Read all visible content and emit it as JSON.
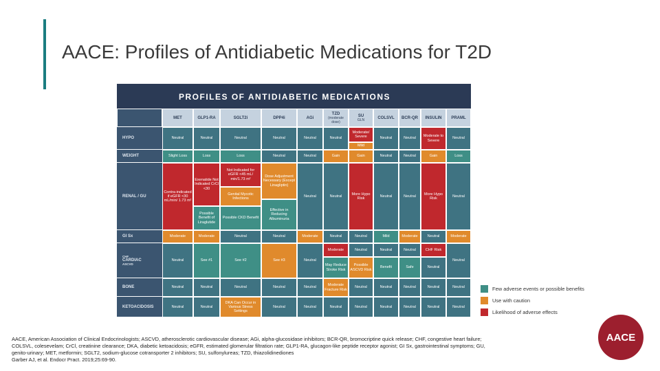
{
  "slide_title": "AACE: Profiles of Antidiabetic Medications for T2D",
  "table": {
    "title": "PROFILES OF ANTIDIABETIC MEDICATIONS",
    "columns": [
      {
        "label": "MET"
      },
      {
        "label": "GLP1-RA"
      },
      {
        "label": "SGLT2i"
      },
      {
        "label": "DPP4i"
      },
      {
        "label": "AGi"
      },
      {
        "label": "TZD",
        "note": "(moderate dose)"
      },
      {
        "label": "SU",
        "note": "GLN"
      },
      {
        "label": "COLSVL"
      },
      {
        "label": "BCR-QR"
      },
      {
        "label": "INSULIN"
      },
      {
        "label": "PRAML"
      }
    ],
    "rows": [
      {
        "label": "HYPO",
        "cells": [
          {
            "text": "Neutral",
            "color": "#3f7382"
          },
          {
            "text": "Neutral",
            "color": "#3f7382"
          },
          {
            "text": "Neutral",
            "color": "#3f7382"
          },
          {
            "text": "Neutral",
            "color": "#3f7382"
          },
          {
            "text": "Neutral",
            "color": "#3f7382"
          },
          {
            "text": "Neutral",
            "color": "#3f7382"
          },
          {
            "text": "Moderate/ Severe",
            "color": "#c0282d"
          },
          {
            "text": "Mild",
            "color": "#e08a2c"
          },
          {
            "text": "Neutral",
            "color": "#3f7382"
          },
          {
            "text": "Neutral",
            "color": "#3f7382"
          },
          {
            "text": "Moderate to Severe",
            "color": "#c0282d"
          },
          {
            "text": "Neutral",
            "color": "#3f7382"
          }
        ]
      },
      {
        "label": "WEIGHT",
        "cells": [
          {
            "text": "Slight Loss",
            "color": "#3f8f86"
          },
          {
            "text": "Loss",
            "color": "#3f8f86"
          },
          {
            "text": "Loss",
            "color": "#3f8f86"
          },
          {
            "text": "Neutral",
            "color": "#3f7382"
          },
          {
            "text": "Neutral",
            "color": "#3f7382"
          },
          {
            "text": "Gain",
            "color": "#e08a2c"
          },
          {
            "text": "Gain",
            "color": "#e08a2c"
          },
          {
            "text": "Neutral",
            "color": "#3f7382"
          },
          {
            "text": "Neutral",
            "color": "#3f7382"
          },
          {
            "text": "Gain",
            "color": "#e08a2c"
          },
          {
            "text": "Loss",
            "color": "#3f8f86"
          }
        ]
      },
      {
        "label": "RENAL / GU",
        "cells": [
          {
            "text": "Contra-indicated if eGFR <30 mL/min/ 1.73 m²",
            "color": "#c0282d"
          },
          {
            "text": "Exenatide Not Indicated CrCl <30",
            "color": "#c0282d"
          },
          {
            "text": "Possible Benefit of Liraglutide",
            "color": "#3f8f86"
          },
          {
            "text": "Not Indicated for eGFR <45 mL/ min/1.73 m²",
            "color": "#c0282d"
          },
          {
            "text": "Genital Mycotic Infections",
            "color": "#e08a2c"
          },
          {
            "text": "Possible CKD Benefit",
            "color": "#3f8f86"
          },
          {
            "text": "Dose Adjustment Necessary (Except Linagliptin)",
            "color": "#e08a2c"
          },
          {
            "text": "Effective in Reducing Albuminuria",
            "color": "#3f8f86"
          },
          {
            "text": "Neutral",
            "color": "#3f7382"
          },
          {
            "text": "Neutral",
            "color": "#3f7382"
          },
          {
            "text": "More Hypo Risk",
            "color": "#c0282d"
          },
          {
            "text": "Neutral",
            "color": "#3f7382"
          },
          {
            "text": "Neutral",
            "color": "#3f7382"
          },
          {
            "text": "More Hypo Risk",
            "color": "#c0282d"
          },
          {
            "text": "Neutral",
            "color": "#3f7382"
          }
        ]
      },
      {
        "label": "GI Sx",
        "cells": [
          {
            "text": "Moderate",
            "color": "#e08a2c"
          },
          {
            "text": "Moderate",
            "color": "#e08a2c"
          },
          {
            "text": "Neutral",
            "color": "#3f7382"
          },
          {
            "text": "Neutral",
            "color": "#3f7382"
          },
          {
            "text": "Moderate",
            "color": "#e08a2c"
          },
          {
            "text": "Neutral",
            "color": "#3f7382"
          },
          {
            "text": "Neutral",
            "color": "#3f7382"
          },
          {
            "text": "Mild",
            "color": "#3f8f86"
          },
          {
            "text": "Moderate",
            "color": "#e08a2c"
          },
          {
            "text": "Neutral",
            "color": "#3f7382"
          },
          {
            "text": "Moderate",
            "color": "#e08a2c"
          }
        ]
      },
      {
        "label": "CARDIAC",
        "sublabels": [
          "CHF",
          "ASCVD"
        ],
        "cells": [
          {
            "text": "Neutral",
            "color": "#3f7382"
          },
          {
            "text": "See #1",
            "color": "#3f8f86"
          },
          {
            "text": "See #2",
            "color": "#3f8f86"
          },
          {
            "text": "See #3",
            "color": "#e08a2c"
          },
          {
            "text": "Neutral",
            "color": "#3f7382"
          },
          {
            "text": "Moderate",
            "color": "#c0282d"
          },
          {
            "text": "May Reduce Stroke Risk",
            "color": "#3f8f86"
          },
          {
            "text": "Neutral",
            "color": "#3f7382"
          },
          {
            "text": "Possible ASCVD Risk",
            "color": "#e08a2c"
          },
          {
            "text": "Neutral",
            "color": "#3f7382"
          },
          {
            "text": "Benefit",
            "color": "#3f8f86"
          },
          {
            "text": "Neutral",
            "color": "#3f7382"
          },
          {
            "text": "Safe",
            "color": "#3f8f86"
          },
          {
            "text": "CHF Risk",
            "color": "#c0282d"
          },
          {
            "text": "Neutral",
            "color": "#3f7382"
          },
          {
            "text": "Neutral",
            "color": "#3f7382"
          }
        ]
      },
      {
        "label": "BONE",
        "cells": [
          {
            "text": "Neutral",
            "color": "#3f7382"
          },
          {
            "text": "Neutral",
            "color": "#3f7382"
          },
          {
            "text": "Neutral",
            "color": "#3f7382"
          },
          {
            "text": "Neutral",
            "color": "#3f7382"
          },
          {
            "text": "Neutral",
            "color": "#3f7382"
          },
          {
            "text": "Moderate Fracture Risk",
            "color": "#e08a2c"
          },
          {
            "text": "Neutral",
            "color": "#3f7382"
          },
          {
            "text": "Neutral",
            "color": "#3f7382"
          },
          {
            "text": "Neutral",
            "color": "#3f7382"
          },
          {
            "text": "Neutral",
            "color": "#3f7382"
          },
          {
            "text": "Neutral",
            "color": "#3f7382"
          }
        ]
      },
      {
        "label": "KETOACIDOSIS",
        "cells": [
          {
            "text": "Neutral",
            "color": "#3f7382"
          },
          {
            "text": "Neutral",
            "color": "#3f7382"
          },
          {
            "text": "DKA Can Occur in Various Stress Settings",
            "color": "#e08a2c"
          },
          {
            "text": "Neutral",
            "color": "#3f7382"
          },
          {
            "text": "Neutral",
            "color": "#3f7382"
          },
          {
            "text": "Neutral",
            "color": "#3f7382"
          },
          {
            "text": "Neutral",
            "color": "#3f7382"
          },
          {
            "text": "Neutral",
            "color": "#3f7382"
          },
          {
            "text": "Neutral",
            "color": "#3f7382"
          },
          {
            "text": "Neutral",
            "color": "#3f7382"
          },
          {
            "text": "Neutral",
            "color": "#3f7382"
          }
        ]
      }
    ]
  },
  "legend": [
    {
      "text": "Few adverse events or possible benefits",
      "color": "#3f8f86"
    },
    {
      "text": "Use with caution",
      "color": "#e08a2c"
    },
    {
      "text": "Likelihood of adverse effects",
      "color": "#c0282d"
    }
  ],
  "footnote": [
    "AACE, American Association of Clinical Endocrinologists; ASCVD, atherosclerotic cardiovascular disease; AGi, alpha-glucosidase inhibitors; BCR-QR, bromocriptine quick release; CHF, congestive heart failure;",
    "COLSVL, colesevelam; CrCl, creatinine clearance; DKA, diabetic ketoacidosis; eGFR, estimated glomerular filtration rate; GLP1-RA, glucagon-like peptide receptor agonist; GI Sx, gastrointestinal symptoms; GU,",
    "genito-urinary; MET, metformin; SGLT2, sodium-glucose cotransporter 2 inhibitors; SU, sulfonylureas; TZD, thiazolidinediones",
    "Garber AJ, et al. Endocr Pract. 2019;25:69-90."
  ],
  "logo": "AACE"
}
